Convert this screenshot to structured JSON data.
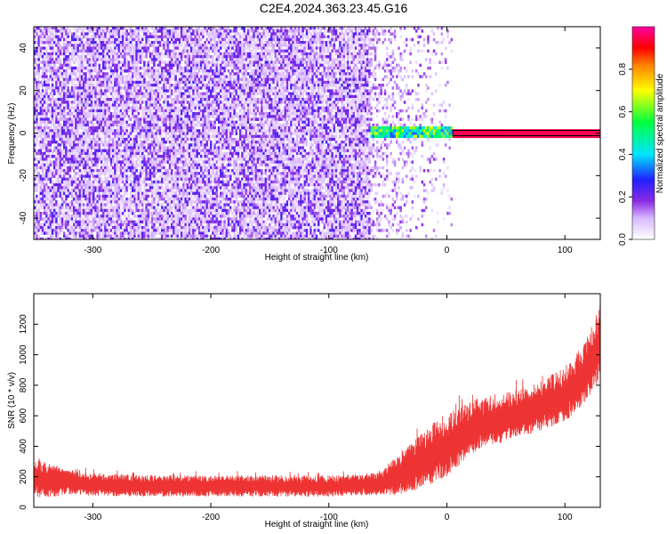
{
  "title": "C2E4.2024.363.23.45.G16",
  "chart_data": [
    {
      "type": "heatmap",
      "xlabel": "Height of straight line (km)",
      "ylabel": "Frequency (Hz)",
      "xlim": [
        -350,
        130
      ],
      "ylim": [
        -50,
        50
      ],
      "xticks": [
        -300,
        -200,
        -100,
        0,
        100
      ],
      "yticks": [
        -40,
        -20,
        0,
        20,
        40
      ],
      "colorbar": {
        "label": "Normalized spectral amplitude",
        "range": [
          0,
          1
        ],
        "ticks": [
          "0.0",
          "0.2",
          "0.4",
          "0.6",
          "0.8"
        ],
        "colormap": "rainbow (white-violet-blue-cyan-green-yellow-red-magenta)"
      },
      "features": [
        {
          "description": "noise",
          "x_range": [
            -350,
            -65
          ],
          "freq_range": [
            -50,
            50
          ],
          "amplitude_range": [
            0.05,
            0.25
          ]
        },
        {
          "description": "noise fading",
          "x_range": [
            -65,
            5
          ],
          "freq_range": [
            -50,
            50
          ],
          "amplitude_range": [
            0.0,
            0.1
          ]
        },
        {
          "description": "carrier emerging",
          "x_range": [
            -65,
            5
          ],
          "freq": 0,
          "amplitude_range": [
            0.3,
            0.7
          ]
        },
        {
          "description": "clear carrier",
          "x_range": [
            5,
            130
          ],
          "freq": 0,
          "amplitude": 0.95
        }
      ],
      "grid": false
    },
    {
      "type": "line",
      "xlabel": "Height of straight line (km)",
      "ylabel": "SNR (10 * v/v)",
      "xlim": [
        -350,
        130
      ],
      "ylim": [
        0,
        1400
      ],
      "xticks": [
        -300,
        -200,
        -100,
        0,
        100
      ],
      "yticks": [
        0,
        200,
        400,
        600,
        800,
        1000,
        1200
      ],
      "series": [
        {
          "color": "#ee3333",
          "x": [
            -350,
            -340,
            -320,
            -300,
            -250,
            -200,
            -150,
            -100,
            -70,
            -55,
            -45,
            -30,
            -20,
            -10,
            0,
            10,
            25,
            50,
            75,
            100,
            115,
            125,
            130
          ],
          "y_mean": [
            190,
            180,
            165,
            150,
            140,
            140,
            140,
            140,
            150,
            160,
            200,
            260,
            320,
            360,
            400,
            470,
            540,
            590,
            650,
            740,
            860,
            1000,
            1100
          ],
          "y_spread": [
            120,
            120,
            80,
            75,
            70,
            70,
            70,
            70,
            70,
            80,
            120,
            160,
            180,
            200,
            200,
            200,
            170,
            160,
            160,
            180,
            200,
            230,
            250
          ]
        }
      ],
      "grid": false
    }
  ]
}
